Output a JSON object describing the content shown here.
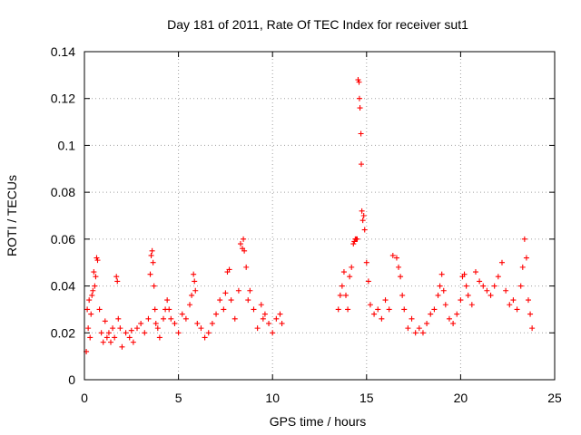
{
  "chart_data": {
    "type": "scatter",
    "title": "Day 181 of 2011, Rate Of TEC Index for receiver sut1",
    "xlabel": "GPS time / hours",
    "ylabel": "ROTI / TECUs",
    "xlim": [
      0,
      25
    ],
    "ylim": [
      0,
      0.14
    ],
    "xticks": [
      "0",
      "5",
      "10",
      "15",
      "20",
      "25"
    ],
    "xtick_values": [
      0,
      5,
      10,
      15,
      20,
      25
    ],
    "yticks": [
      "0",
      "0.02",
      "0.04",
      "0.06",
      "0.08",
      "0.1",
      "0.12",
      "0.14"
    ],
    "ytick_values": [
      0,
      0.02,
      0.04,
      0.06,
      0.08,
      0.1,
      0.12,
      0.14
    ],
    "grid": true,
    "marker": "plus",
    "color": "#ff0000",
    "series": [
      {
        "points": [
          [
            0.1,
            0.012
          ],
          [
            0.15,
            0.03
          ],
          [
            0.2,
            0.022
          ],
          [
            0.25,
            0.034
          ],
          [
            0.3,
            0.018
          ],
          [
            0.35,
            0.028
          ],
          [
            0.4,
            0.036
          ],
          [
            0.45,
            0.038
          ],
          [
            0.5,
            0.046
          ],
          [
            0.55,
            0.04
          ],
          [
            0.6,
            0.044
          ],
          [
            0.65,
            0.052
          ],
          [
            0.7,
            0.051
          ],
          [
            0.8,
            0.03
          ],
          [
            0.9,
            0.02
          ],
          [
            1.0,
            0.016
          ],
          [
            1.1,
            0.025
          ],
          [
            1.2,
            0.018
          ],
          [
            1.3,
            0.02
          ],
          [
            1.4,
            0.016
          ],
          [
            1.5,
            0.022
          ],
          [
            1.6,
            0.018
          ],
          [
            1.7,
            0.044
          ],
          [
            1.75,
            0.042
          ],
          [
            1.8,
            0.026
          ],
          [
            1.9,
            0.022
          ],
          [
            2.0,
            0.014
          ],
          [
            2.2,
            0.02
          ],
          [
            2.4,
            0.018
          ],
          [
            2.5,
            0.021
          ],
          [
            2.6,
            0.016
          ],
          [
            2.8,
            0.022
          ],
          [
            3.0,
            0.024
          ],
          [
            3.2,
            0.02
          ],
          [
            3.4,
            0.026
          ],
          [
            3.5,
            0.045
          ],
          [
            3.55,
            0.053
          ],
          [
            3.6,
            0.055
          ],
          [
            3.65,
            0.05
          ],
          [
            3.7,
            0.04
          ],
          [
            3.75,
            0.03
          ],
          [
            3.8,
            0.024
          ],
          [
            3.9,
            0.022
          ],
          [
            4.0,
            0.018
          ],
          [
            4.2,
            0.026
          ],
          [
            4.3,
            0.03
          ],
          [
            4.4,
            0.034
          ],
          [
            4.5,
            0.03
          ],
          [
            4.6,
            0.026
          ],
          [
            4.8,
            0.024
          ],
          [
            5.0,
            0.02
          ],
          [
            5.2,
            0.028
          ],
          [
            5.4,
            0.026
          ],
          [
            5.6,
            0.032
          ],
          [
            5.7,
            0.036
          ],
          [
            5.8,
            0.045
          ],
          [
            5.85,
            0.042
          ],
          [
            5.9,
            0.038
          ],
          [
            6.0,
            0.024
          ],
          [
            6.2,
            0.022
          ],
          [
            6.4,
            0.018
          ],
          [
            6.6,
            0.02
          ],
          [
            6.8,
            0.024
          ],
          [
            7.0,
            0.028
          ],
          [
            7.2,
            0.034
          ],
          [
            7.4,
            0.03
          ],
          [
            7.5,
            0.037
          ],
          [
            7.6,
            0.046
          ],
          [
            7.7,
            0.047
          ],
          [
            7.8,
            0.034
          ],
          [
            8.0,
            0.026
          ],
          [
            8.2,
            0.038
          ],
          [
            8.3,
            0.058
          ],
          [
            8.4,
            0.056
          ],
          [
            8.45,
            0.06
          ],
          [
            8.5,
            0.055
          ],
          [
            8.6,
            0.048
          ],
          [
            8.7,
            0.034
          ],
          [
            8.8,
            0.038
          ],
          [
            9.0,
            0.03
          ],
          [
            9.2,
            0.022
          ],
          [
            9.4,
            0.032
          ],
          [
            9.5,
            0.026
          ],
          [
            9.6,
            0.028
          ],
          [
            9.8,
            0.024
          ],
          [
            10.0,
            0.02
          ],
          [
            10.2,
            0.026
          ],
          [
            10.4,
            0.028
          ],
          [
            10.5,
            0.024
          ],
          [
            13.5,
            0.03
          ],
          [
            13.6,
            0.036
          ],
          [
            13.7,
            0.04
          ],
          [
            13.8,
            0.046
          ],
          [
            13.9,
            0.036
          ],
          [
            14.0,
            0.03
          ],
          [
            14.1,
            0.044
          ],
          [
            14.2,
            0.048
          ],
          [
            14.3,
            0.058
          ],
          [
            14.35,
            0.059
          ],
          [
            14.4,
            0.06
          ],
          [
            14.45,
            0.06
          ],
          [
            14.5,
            0.06
          ],
          [
            14.55,
            0.128
          ],
          [
            14.6,
            0.127
          ],
          [
            14.62,
            0.12
          ],
          [
            14.65,
            0.116
          ],
          [
            14.7,
            0.105
          ],
          [
            14.72,
            0.092
          ],
          [
            14.75,
            0.072
          ],
          [
            14.8,
            0.068
          ],
          [
            14.85,
            0.07
          ],
          [
            14.9,
            0.064
          ],
          [
            15.0,
            0.05
          ],
          [
            15.1,
            0.042
          ],
          [
            15.2,
            0.032
          ],
          [
            15.4,
            0.028
          ],
          [
            15.6,
            0.03
          ],
          [
            15.8,
            0.026
          ],
          [
            16.0,
            0.034
          ],
          [
            16.2,
            0.03
          ],
          [
            16.4,
            0.053
          ],
          [
            16.6,
            0.052
          ],
          [
            16.7,
            0.048
          ],
          [
            16.8,
            0.044
          ],
          [
            16.9,
            0.036
          ],
          [
            17.0,
            0.03
          ],
          [
            17.2,
            0.022
          ],
          [
            17.4,
            0.026
          ],
          [
            17.6,
            0.02
          ],
          [
            17.8,
            0.022
          ],
          [
            18.0,
            0.02
          ],
          [
            18.2,
            0.024
          ],
          [
            18.4,
            0.028
          ],
          [
            18.6,
            0.03
          ],
          [
            18.8,
            0.036
          ],
          [
            18.9,
            0.04
          ],
          [
            19.0,
            0.045
          ],
          [
            19.1,
            0.038
          ],
          [
            19.2,
            0.032
          ],
          [
            19.4,
            0.026
          ],
          [
            19.6,
            0.024
          ],
          [
            19.8,
            0.028
          ],
          [
            20.0,
            0.034
          ],
          [
            20.1,
            0.044
          ],
          [
            20.2,
            0.045
          ],
          [
            20.3,
            0.04
          ],
          [
            20.4,
            0.036
          ],
          [
            20.6,
            0.032
          ],
          [
            20.8,
            0.046
          ],
          [
            21.0,
            0.042
          ],
          [
            21.2,
            0.04
          ],
          [
            21.4,
            0.038
          ],
          [
            21.6,
            0.036
          ],
          [
            21.8,
            0.04
          ],
          [
            22.0,
            0.044
          ],
          [
            22.2,
            0.05
          ],
          [
            22.4,
            0.038
          ],
          [
            22.6,
            0.032
          ],
          [
            22.8,
            0.034
          ],
          [
            23.0,
            0.03
          ],
          [
            23.2,
            0.04
          ],
          [
            23.3,
            0.048
          ],
          [
            23.4,
            0.06
          ],
          [
            23.5,
            0.052
          ],
          [
            23.6,
            0.034
          ],
          [
            23.7,
            0.028
          ],
          [
            23.8,
            0.022
          ]
        ]
      }
    ]
  }
}
